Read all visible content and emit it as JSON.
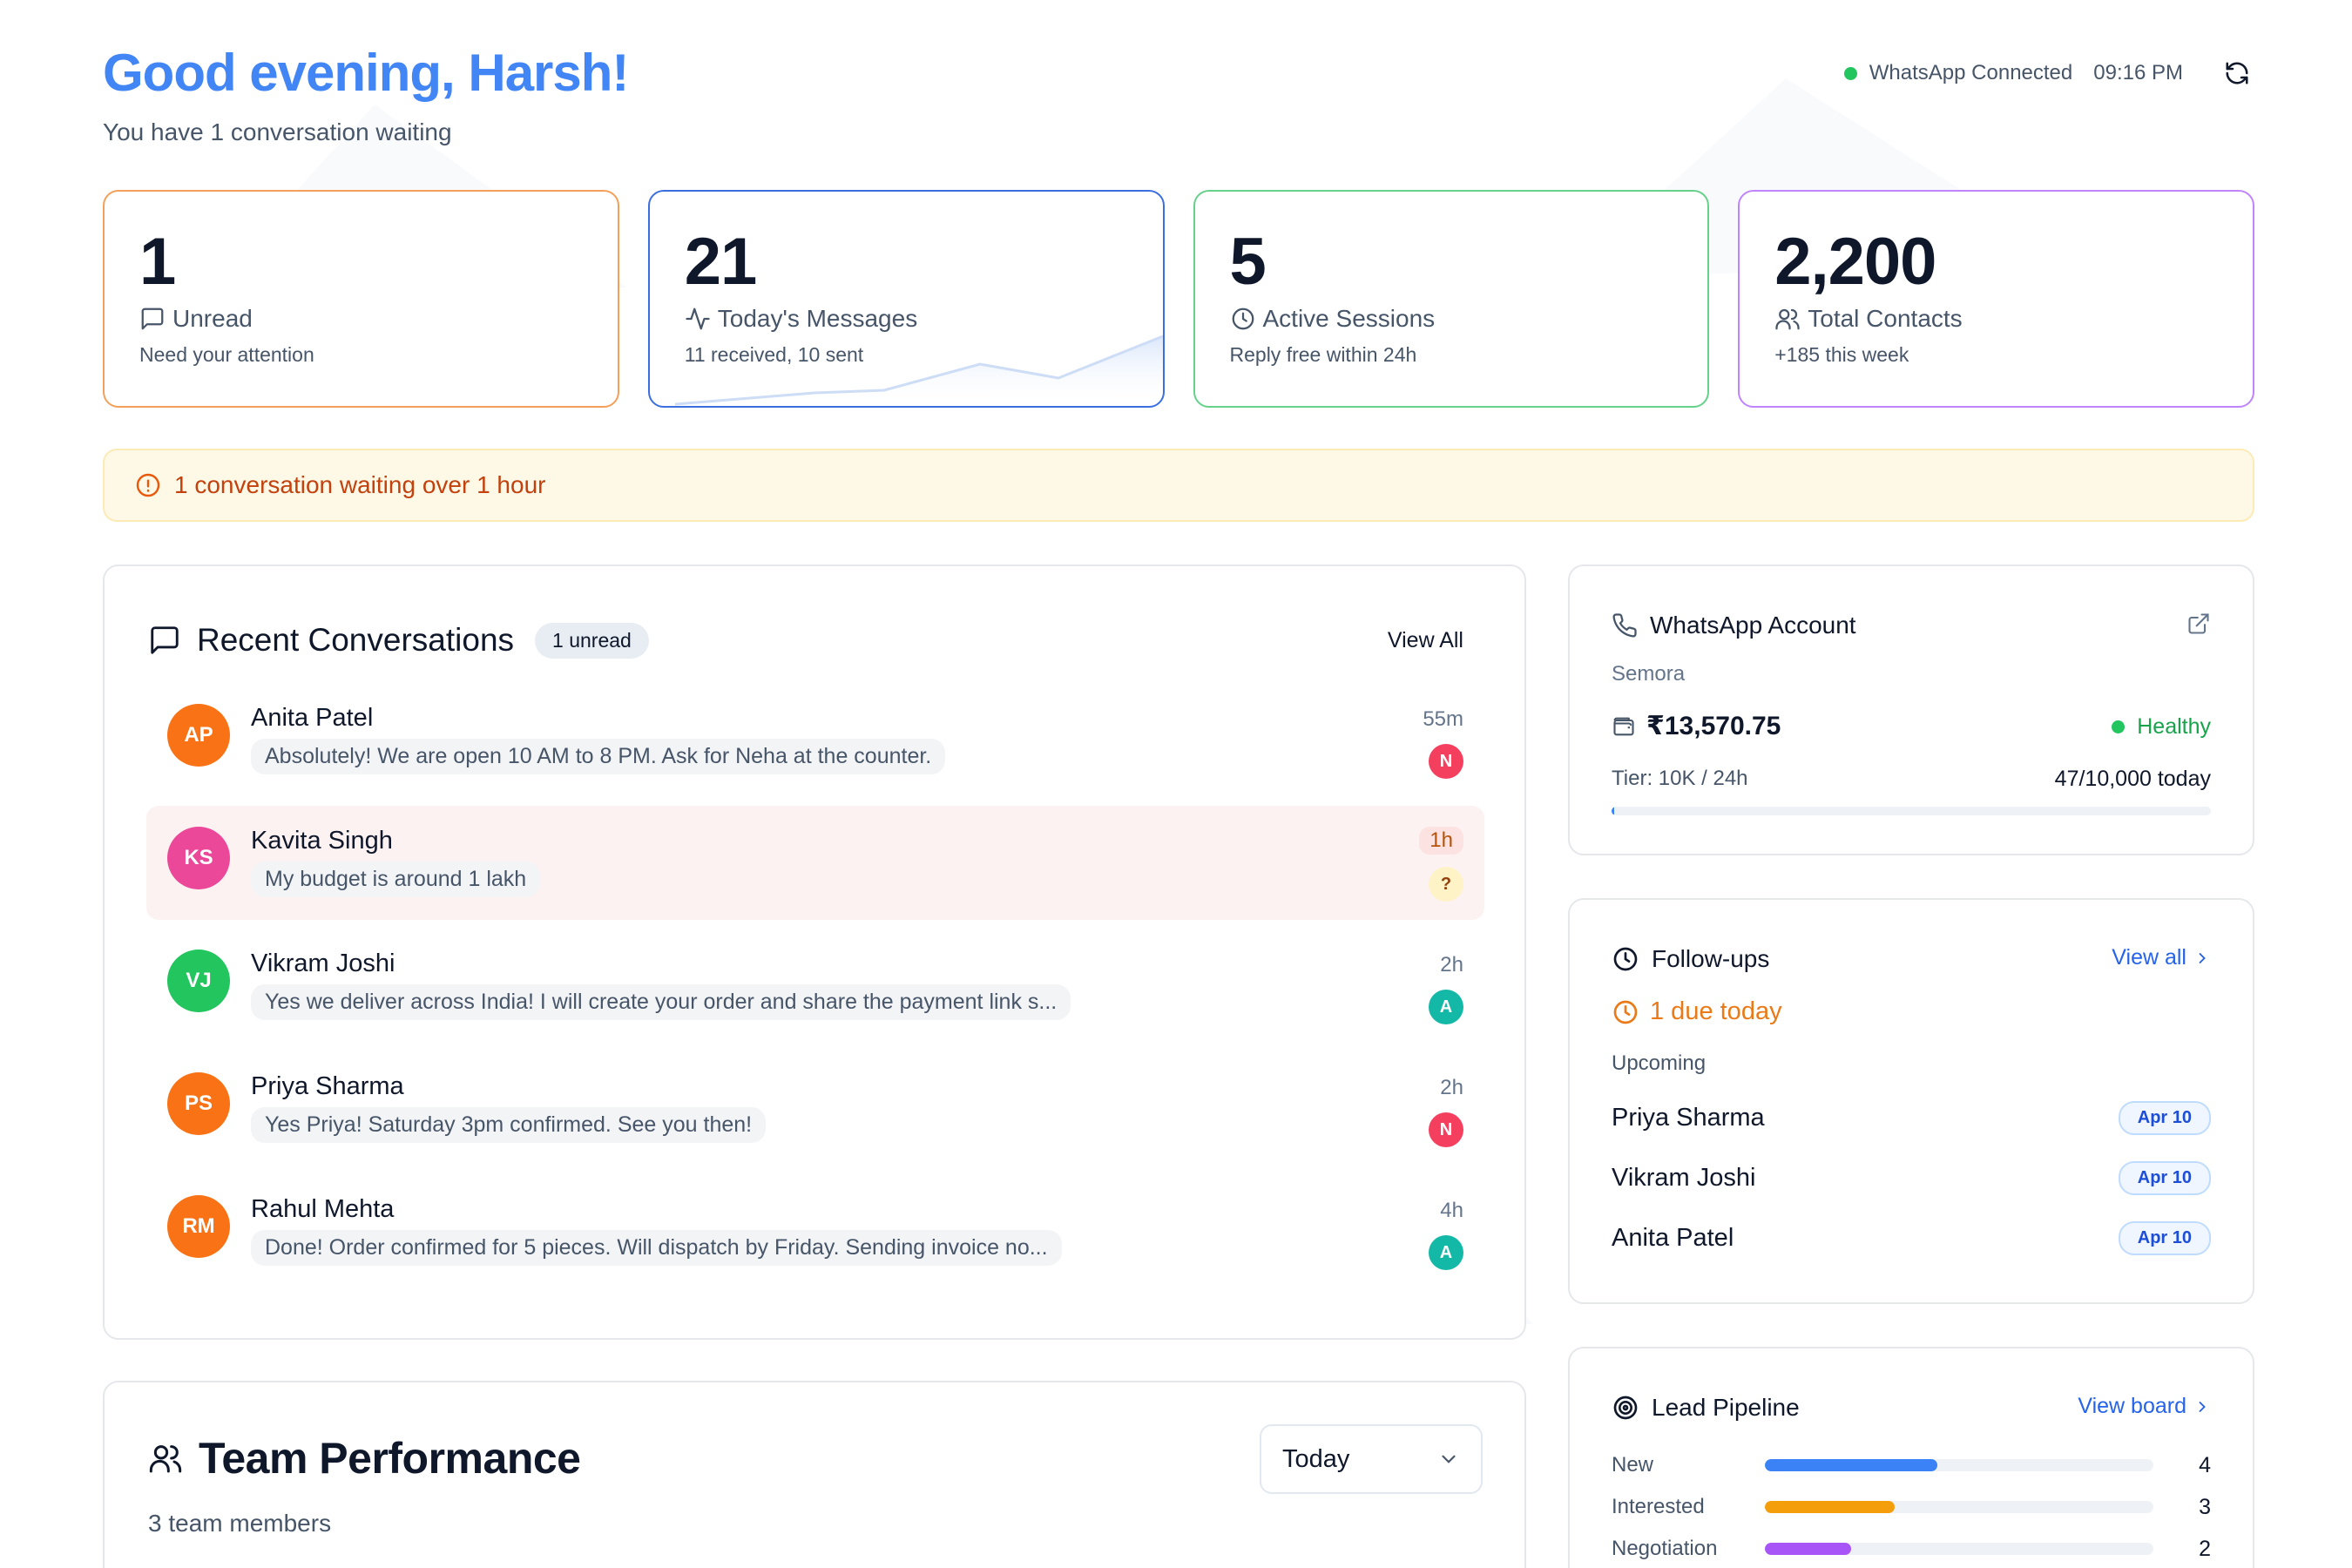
{
  "header": {
    "greeting": "Good evening, Harsh!",
    "subtitle": "You have 1 conversation waiting",
    "status": "WhatsApp Connected",
    "time": "09:16 PM",
    "colors": {
      "accent": "#4285f4",
      "connected": "#22c55e"
    }
  },
  "stats": [
    {
      "value": "1",
      "label": "Unread",
      "sub": "Need your attention",
      "icon": "message-square-icon",
      "color": "#f4a05a"
    },
    {
      "value": "21",
      "label": "Today's Messages",
      "sub": "11 received, 10 sent",
      "icon": "activity-icon",
      "color": "#3b6fe0"
    },
    {
      "value": "5",
      "label": "Active Sessions",
      "sub": "Reply free within 24h",
      "icon": "clock-icon",
      "color": "#66d18a"
    },
    {
      "value": "2,200",
      "label": "Total Contacts",
      "sub": "+185 this week",
      "icon": "users-icon",
      "color": "#c084fc"
    }
  ],
  "alert": {
    "text": "1 conversation waiting over 1 hour",
    "icon": "alert-circle-icon"
  },
  "conversations": {
    "title": "Recent Conversations",
    "badge": "1 unread",
    "view_all": "View All",
    "items": [
      {
        "initials": "AP",
        "name": "Anita Patel",
        "message": "Absolutely! We are open 10 AM to 8 PM. Ask for Neha at the counter.",
        "time": "55m",
        "agent": "N",
        "avatar_color": "#f97316",
        "agent_color": "#f43f5e"
      },
      {
        "initials": "KS",
        "name": "Kavita Singh",
        "message": "My budget is around 1 lakh",
        "time": "1h",
        "agent": "?",
        "avatar_color": "#ec4899",
        "agent_color": "#fde68a"
      },
      {
        "initials": "VJ",
        "name": "Vikram Joshi",
        "message": "Yes we deliver across India! I will create your order and share the payment link s...",
        "time": "2h",
        "agent": "A",
        "avatar_color": "#22c55e",
        "agent_color": "#14b8a6"
      },
      {
        "initials": "PS",
        "name": "Priya Sharma",
        "message": "Yes Priya! Saturday 3pm confirmed. See you then!",
        "time": "2h",
        "agent": "N",
        "avatar_color": "#f97316",
        "agent_color": "#f43f5e"
      },
      {
        "initials": "RM",
        "name": "Rahul Mehta",
        "message": "Done! Order confirmed for 5 pieces. Will dispatch by Friday. Sending invoice no...",
        "time": "4h",
        "agent": "A",
        "avatar_color": "#f97316",
        "agent_color": "#14b8a6"
      }
    ]
  },
  "team": {
    "title": "Team Performance",
    "subtitle": "3 team members",
    "period": "Today"
  },
  "whatsapp": {
    "title": "WhatsApp Account",
    "name": "Semora",
    "balance": "₹13,570.75",
    "health": "Healthy",
    "tier": "Tier: 10K / 24h",
    "usage": "47/10,000 today",
    "usage_fraction": 0.0047
  },
  "followups": {
    "title": "Follow-ups",
    "view_all": "View all",
    "due": "1 due today",
    "upcoming_label": "Upcoming",
    "items": [
      {
        "name": "Priya Sharma",
        "date": "Apr 10"
      },
      {
        "name": "Vikram Joshi",
        "date": "Apr 10"
      },
      {
        "name": "Anita Patel",
        "date": "Apr 10"
      }
    ]
  },
  "pipeline": {
    "title": "Lead Pipeline",
    "view_board": "View board",
    "stages": [
      {
        "label": "New",
        "count": "4",
        "value": 4,
        "color": "#3b82f6"
      },
      {
        "label": "Interested",
        "count": "3",
        "value": 3,
        "color": "#f59e0b"
      },
      {
        "label": "Negotiation",
        "count": "2",
        "value": 2,
        "color": "#a855f7"
      }
    ],
    "scale_max": 9
  }
}
